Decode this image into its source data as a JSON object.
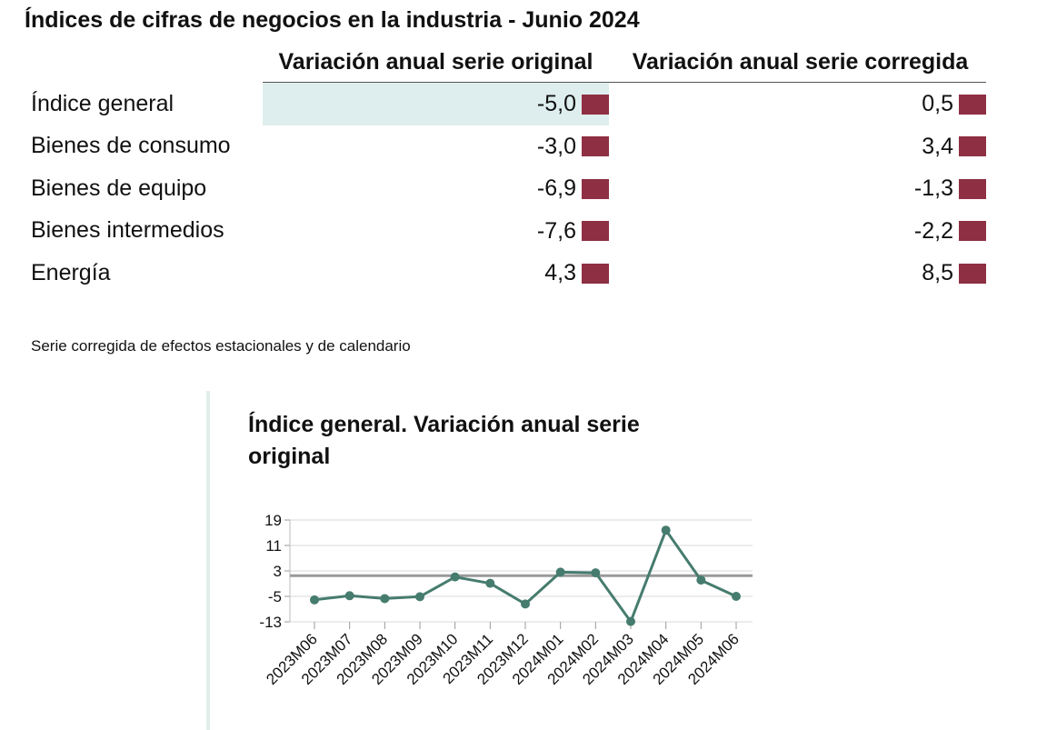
{
  "page": {
    "title": "Índices de cifras de negocios en la industria - Junio 2024",
    "note": "Serie corregida de efectos estacionales y de calendario"
  },
  "table": {
    "headers": [
      "Variación anual serie original",
      "Variación anual serie corregida"
    ],
    "rows": [
      {
        "label": "Índice general",
        "original": "-5,0",
        "corregida": "0,5"
      },
      {
        "label": "Bienes de consumo",
        "original": "-3,0",
        "corregida": "3,4"
      },
      {
        "label": "Bienes de equipo",
        "original": "-6,9",
        "corregida": "-1,3"
      },
      {
        "label": "Bienes intermedios",
        "original": "-7,6",
        "corregida": "-2,2"
      },
      {
        "label": "Energía",
        "original": "4,3",
        "corregida": "8,5"
      }
    ],
    "icon": "bar-chart-icon",
    "icon_color": "#8e2f43",
    "highlight_color": "#deeeee"
  },
  "chart_data": {
    "type": "line",
    "title": "Índice general. Variación anual serie original",
    "categories": [
      "2023M06",
      "2023M07",
      "2023M08",
      "2023M09",
      "2023M10",
      "2023M11",
      "2023M12",
      "2024M01",
      "2024M02",
      "2024M03",
      "2024M04",
      "2024M05",
      "2024M06"
    ],
    "series": [
      {
        "values": [
          -6.1,
          -4.8,
          -5.7,
          -5.1,
          1.1,
          -0.9,
          -7.4,
          2.6,
          2.4,
          -12.9,
          15.8,
          0.1,
          -5.0
        ]
      }
    ],
    "reference_line": 1.5,
    "yticks": [
      19,
      11,
      3,
      -5,
      -13
    ],
    "ylim": [
      -13,
      19
    ],
    "grid": true,
    "colors": {
      "line": "#467c6e",
      "reference": "#9a9a9a",
      "grid": "#d9d9d9"
    }
  }
}
